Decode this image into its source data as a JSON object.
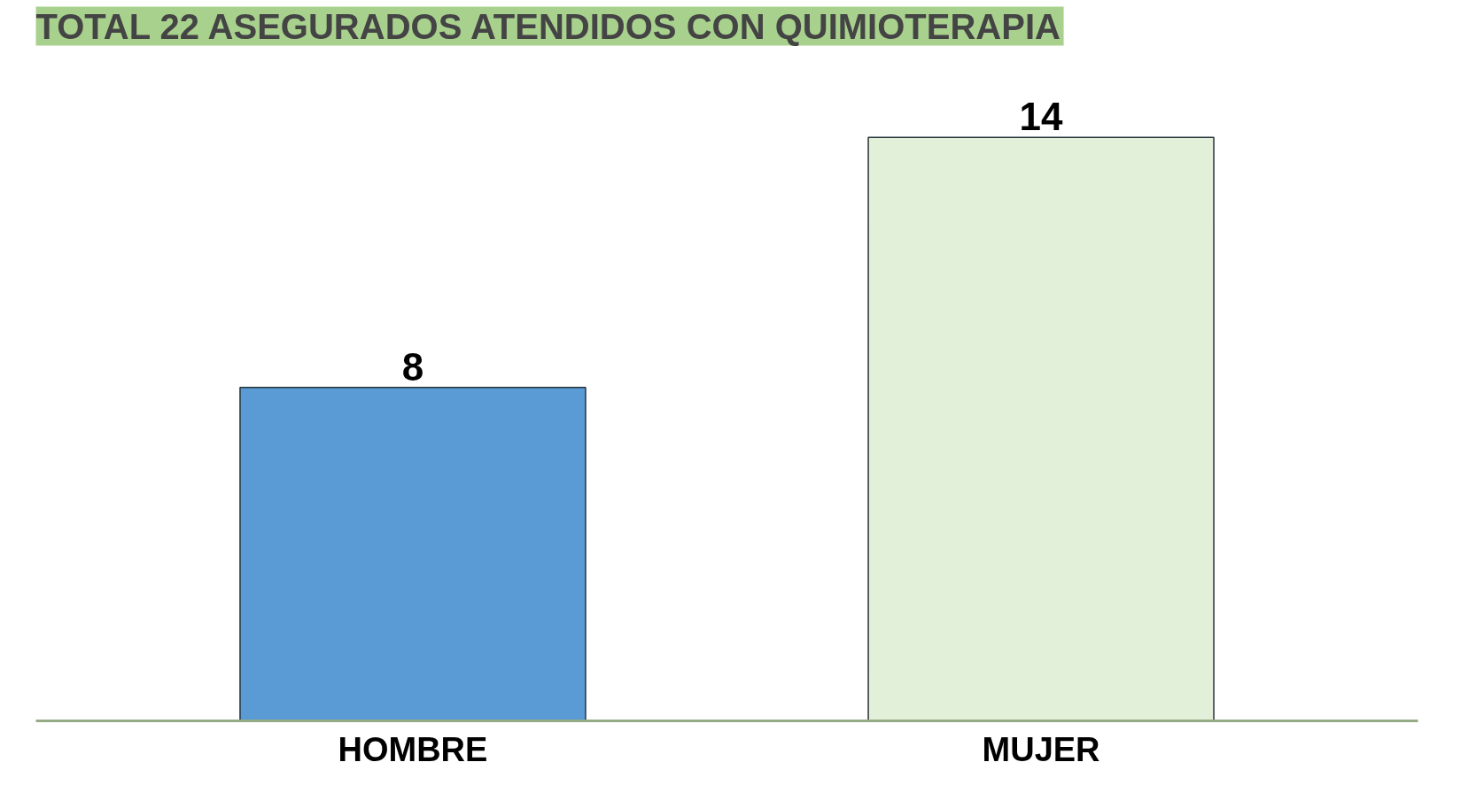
{
  "chart_data": {
    "type": "bar",
    "title": "TOTAL 22 ASEGURADOS ATENDIDOS CON QUIMIOTERAPIA",
    "categories": [
      "HOMBRE",
      "MUJER"
    ],
    "values": [
      8,
      14
    ],
    "colors": [
      "#5b9bd5",
      "#e2efd9"
    ],
    "data_labels": true,
    "grid": false
  }
}
